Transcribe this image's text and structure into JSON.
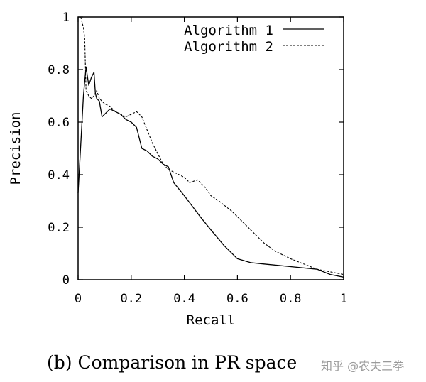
{
  "chart_data": {
    "type": "line",
    "xlabel": "Recall",
    "ylabel": "Precision",
    "xlim": [
      0,
      1
    ],
    "ylim": [
      0,
      1
    ],
    "x_ticks": [
      "0",
      "0.2",
      "0.4",
      "0.6",
      "0.8",
      "1"
    ],
    "y_ticks": [
      "0",
      "0.2",
      "0.4",
      "0.6",
      "0.8",
      "1"
    ],
    "grid": false,
    "legend_position": "top-right",
    "series": [
      {
        "name": "Algorithm 1",
        "style": "solid",
        "x": [
          0.0,
          0.02,
          0.03,
          0.04,
          0.05,
          0.06,
          0.065,
          0.07,
          0.08,
          0.09,
          0.1,
          0.12,
          0.14,
          0.16,
          0.18,
          0.2,
          0.22,
          0.24,
          0.26,
          0.28,
          0.3,
          0.32,
          0.34,
          0.36,
          0.4,
          0.43,
          0.46,
          0.5,
          0.55,
          0.6,
          0.65,
          0.7,
          0.8,
          0.9,
          0.95,
          1.0
        ],
        "y": [
          0.33,
          0.7,
          0.81,
          0.74,
          0.77,
          0.79,
          0.71,
          0.69,
          0.68,
          0.62,
          0.63,
          0.65,
          0.64,
          0.63,
          0.61,
          0.6,
          0.58,
          0.5,
          0.49,
          0.47,
          0.46,
          0.44,
          0.43,
          0.37,
          0.32,
          0.28,
          0.24,
          0.19,
          0.13,
          0.08,
          0.065,
          0.06,
          0.05,
          0.04,
          0.02,
          0.01
        ]
      },
      {
        "name": "Algorithm 2",
        "style": "dashed",
        "x": [
          0.01,
          0.015,
          0.02,
          0.025,
          0.03,
          0.04,
          0.05,
          0.06,
          0.07,
          0.08,
          0.1,
          0.12,
          0.14,
          0.16,
          0.18,
          0.2,
          0.22,
          0.24,
          0.26,
          0.28,
          0.3,
          0.32,
          0.34,
          0.36,
          0.4,
          0.42,
          0.45,
          0.48,
          0.5,
          0.53,
          0.58,
          0.62,
          0.66,
          0.7,
          0.74,
          0.8,
          0.85,
          0.9,
          0.95,
          1.0
        ],
        "y": [
          1.0,
          0.98,
          0.96,
          0.92,
          0.72,
          0.7,
          0.69,
          0.7,
          0.72,
          0.69,
          0.67,
          0.66,
          0.64,
          0.63,
          0.62,
          0.63,
          0.64,
          0.62,
          0.57,
          0.52,
          0.48,
          0.44,
          0.42,
          0.41,
          0.39,
          0.37,
          0.38,
          0.35,
          0.32,
          0.3,
          0.26,
          0.22,
          0.18,
          0.14,
          0.11,
          0.08,
          0.06,
          0.04,
          0.03,
          0.02
        ]
      }
    ]
  },
  "caption": "(b) Comparison in PR space",
  "watermark": "知乎 @农夫三拳"
}
